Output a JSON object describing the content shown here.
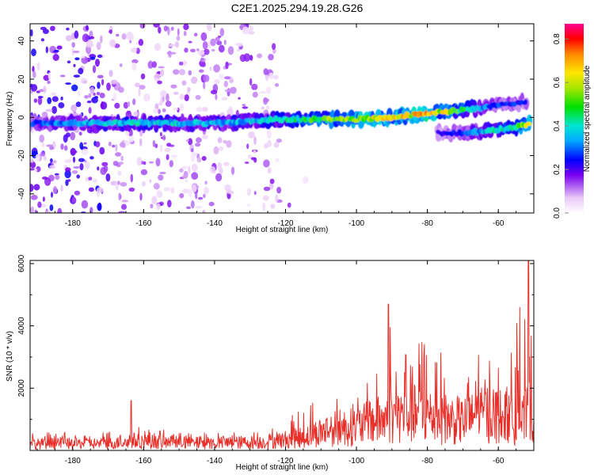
{
  "title": "C2E1.2025.294.19.28.G26",
  "chart_data": [
    {
      "type": "heatmap",
      "name": "spectrogram",
      "xlabel": "Height of straight line (km)",
      "ylabel": "Frequency (Hz)",
      "xlim": [
        -192,
        -50
      ],
      "ylim": [
        -50,
        49
      ],
      "xticks": [
        -180,
        -160,
        -140,
        -120,
        -100,
        -80,
        -60
      ],
      "yticks": [
        -40,
        -20,
        0,
        20,
        40
      ],
      "colorbar": {
        "label": "Normalized spectral amplitude",
        "range": [
          0,
          0.87
        ],
        "ticks": [
          0.0,
          0.2,
          0.4,
          0.6,
          0.8
        ]
      },
      "ridges": [
        {
          "name": "main-band",
          "x": [
            -192,
            -180,
            -170,
            -160,
            -150,
            -140,
            -130,
            -120,
            -110,
            -100,
            -90,
            -80,
            -70,
            -62,
            -52
          ],
          "y": [
            -3,
            -3,
            -3,
            -3,
            -3,
            -3,
            -2,
            -1,
            -1,
            -1,
            0,
            2,
            4,
            6,
            8
          ],
          "amplitude": [
            0.3,
            0.38,
            0.42,
            0.45,
            0.42,
            0.4,
            0.42,
            0.48,
            0.6,
            0.7,
            0.72,
            0.8,
            0.55,
            0.3,
            0.28
          ]
        },
        {
          "name": "lower-band",
          "x": [
            -77,
            -70,
            -62,
            -55,
            -51
          ],
          "y": [
            -8,
            -8,
            -7,
            -5,
            -3
          ],
          "amplitude": [
            0.22,
            0.3,
            0.45,
            0.55,
            0.82
          ]
        }
      ]
    },
    {
      "type": "line",
      "name": "snr",
      "xlabel": "Height of straight line (km)",
      "ylabel": "SNR (10 * v/v)",
      "xlim": [
        -192,
        -50
      ],
      "ylim": [
        0,
        6100
      ],
      "xticks": [
        -180,
        -160,
        -140,
        -120,
        -100,
        -80,
        -60
      ],
      "yticks": [
        2000,
        4000,
        6000
      ],
      "color": "#e8302a",
      "envelope": {
        "x": [
          -192,
          -170,
          -165,
          -163.5,
          -162,
          -150,
          -140,
          -125,
          -115,
          -110,
          -108,
          -100,
          -95,
          -91,
          -89,
          -85,
          -80,
          -75,
          -70,
          -65,
          -62,
          -57,
          -55,
          -53,
          -51.5,
          -50
        ],
        "base": [
          250,
          260,
          300,
          400,
          350,
          280,
          280,
          320,
          500,
          700,
          800,
          900,
          1100,
          1200,
          1300,
          1400,
          1300,
          1200,
          1100,
          1300,
          1400,
          1200,
          1000,
          1100,
          1500,
          1200
        ],
        "peak": [
          600,
          650,
          700,
          1600,
          800,
          600,
          600,
          700,
          1500,
          2000,
          1700,
          1900,
          2500,
          4700,
          3500,
          3300,
          4200,
          3300,
          2800,
          3700,
          2800,
          3200,
          4400,
          5600,
          6100,
          2500
        ]
      }
    }
  ]
}
